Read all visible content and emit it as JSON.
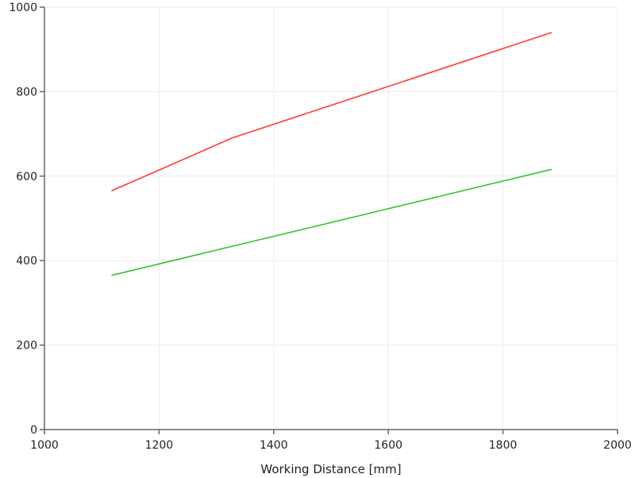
{
  "chart_data": {
    "type": "line",
    "xlabel": "Working Distance [mm]",
    "ylabel": "",
    "xlim": [
      1000,
      2000
    ],
    "ylim": [
      0,
      1000
    ],
    "xticks": [
      1000,
      1200,
      1400,
      1600,
      1800,
      2000
    ],
    "yticks": [
      0,
      200,
      400,
      600,
      800,
      1000
    ],
    "grid": true,
    "legend": "none",
    "series": [
      {
        "color": "#ff3b3b",
        "x": [
          1117,
          1327,
          1885
        ],
        "y": [
          565,
          690,
          940
        ]
      },
      {
        "color": "#33c433",
        "x": [
          1117,
          1885
        ],
        "y": [
          365,
          616
        ]
      }
    ]
  }
}
